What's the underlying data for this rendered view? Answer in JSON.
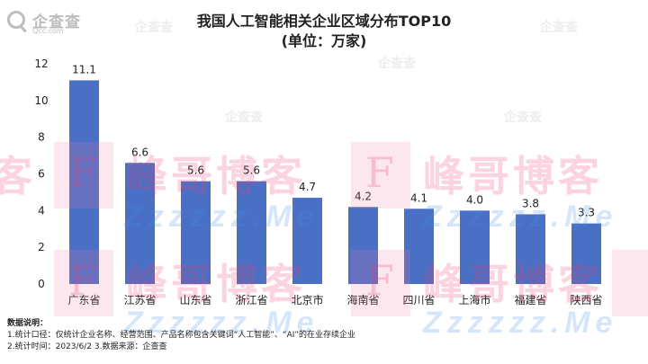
{
  "header": {
    "logo_name": "企查查",
    "logo_domain": "Qcc.com",
    "title": "我国人工智能相关企业区域分布TOP10",
    "subtitle": "(单位：万家)"
  },
  "chart_data": {
    "type": "bar",
    "categories": [
      "广东省",
      "江苏省",
      "山东省",
      "浙江省",
      "北京市",
      "海南省",
      "四川省",
      "上海市",
      "福建省",
      "陕西省"
    ],
    "values": [
      11.1,
      6.6,
      5.6,
      5.6,
      4.7,
      4.2,
      4.1,
      4.0,
      3.8,
      3.3
    ],
    "value_labels": [
      "11.1",
      "6.6",
      "5.6",
      "5.6",
      "4.7",
      "4.2",
      "4.1",
      "4.0",
      "3.8",
      "3.3"
    ],
    "ylim": [
      0,
      12
    ],
    "yticks": [
      0,
      2,
      4,
      6,
      8,
      10,
      12
    ],
    "grid": false,
    "bar_color": "#4a70c6"
  },
  "notes": {
    "heading": "数据说明：",
    "line1": "1.统计口径：仅统计企业名称、经营范围、产品名称包含关键词“人工智能”、“AI”的在业存续企业",
    "line2": "2.统计时间：2023/6/2       3.数据来源：企查查"
  },
  "watermark": {
    "big": "峰哥博客",
    "sub": "Zzzzzz.Me",
    "letter": "F"
  }
}
